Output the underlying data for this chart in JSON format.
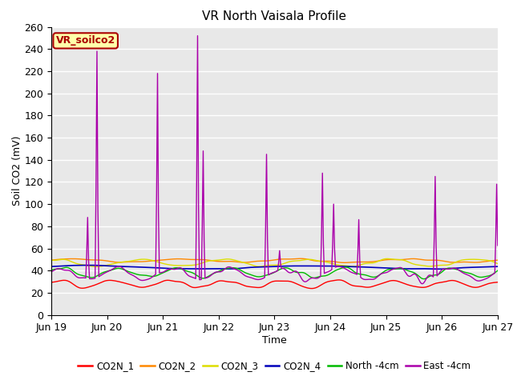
{
  "title": "VR North Vaisala Profile",
  "xlabel": "Time",
  "ylabel": "Soil CO2 (mV)",
  "ylim": [
    0,
    260
  ],
  "yticks": [
    0,
    20,
    40,
    60,
    80,
    100,
    120,
    140,
    160,
    180,
    200,
    220,
    240,
    260
  ],
  "x_labels": [
    "Jun 19",
    "Jun 20",
    "Jun 21",
    "Jun 22",
    "Jun 23",
    "Jun 24",
    "Jun 25",
    "Jun 26",
    "Jun 27"
  ],
  "annotation_text": "VR_soilco2",
  "annotation_box_color": "#FFFFAA",
  "annotation_border_color": "#AA0000",
  "bg_color": "#E8E8E8",
  "series_colors": {
    "CO2N_1": "#FF0000",
    "CO2N_2": "#FF8800",
    "CO2N_3": "#DDDD00",
    "CO2N_4": "#0000BB",
    "North -4cm": "#00BB00",
    "East -4cm": "#AA00AA"
  },
  "legend_labels": [
    "CO2N_1",
    "CO2N_2",
    "CO2N_3",
    "CO2N_4",
    "North -4cm",
    "East -4cm"
  ],
  "legend_colors": [
    "#FF0000",
    "#FF8800",
    "#DDDD00",
    "#0000BB",
    "#00BB00",
    "#AA00AA"
  ],
  "figsize": [
    6.4,
    4.8
  ],
  "dpi": 100
}
